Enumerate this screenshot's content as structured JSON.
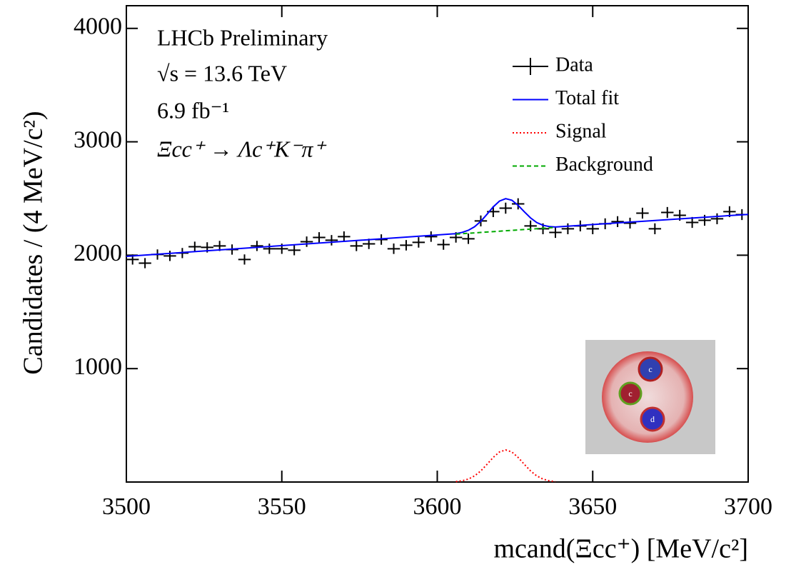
{
  "chart_data": {
    "type": "line",
    "annotations": [
      "LHCb Preliminary",
      "√s = 13.6 TeV",
      "6.9 fb⁻¹",
      "Ξcc⁺ → Λc⁺K⁻π⁺"
    ],
    "x_label": "mcand(Ξcc⁺) [MeV/c²]",
    "y_label": "Candidates / (4 MeV/c²)",
    "xlim": [
      3500,
      3700
    ],
    "xticks": [
      3500,
      3550,
      3600,
      3650,
      3700
    ],
    "ylim": [
      0,
      4200
    ],
    "yticks": [
      1000,
      2000,
      3000,
      4000
    ],
    "legend": "upper right",
    "series": [
      {
        "name": "Data",
        "color": "#000000",
        "style": "errorbar",
        "x": [
          3502,
          3506,
          3510,
          3514,
          3518,
          3522,
          3526,
          3530,
          3534,
          3538,
          3542,
          3546,
          3550,
          3554,
          3558,
          3562,
          3566,
          3570,
          3574,
          3578,
          3582,
          3586,
          3590,
          3594,
          3598,
          3602,
          3606,
          3610,
          3614,
          3618,
          3622,
          3626,
          3630,
          3634,
          3638,
          3642,
          3646,
          3650,
          3654,
          3658,
          3662,
          3666,
          3670,
          3674,
          3678,
          3682,
          3686,
          3690,
          3694,
          3698
        ],
        "values": [
          1962,
          1930,
          2006,
          1994,
          2019,
          2075,
          2069,
          2082,
          2050,
          1962,
          2082,
          2057,
          2057,
          2044,
          2119,
          2157,
          2132,
          2164,
          2082,
          2100,
          2138,
          2057,
          2088,
          2113,
          2164,
          2094,
          2157,
          2145,
          2302,
          2384,
          2415,
          2453,
          2258,
          2233,
          2201,
          2233,
          2258,
          2233,
          2277,
          2296,
          2283,
          2371,
          2233,
          2377,
          2352,
          2289,
          2308,
          2321,
          2384,
          2358
        ],
        "yerr": [
          45,
          45,
          45,
          45,
          45,
          45,
          45,
          45,
          45,
          45,
          45,
          45,
          45,
          45,
          46,
          46,
          46,
          46,
          46,
          46,
          46,
          46,
          46,
          46,
          46,
          46,
          46,
          46,
          48,
          48,
          49,
          49,
          48,
          48,
          48,
          48,
          48,
          48,
          48,
          48,
          48,
          48,
          48,
          48,
          48,
          48,
          48,
          48,
          48,
          48
        ]
      },
      {
        "name": "Total fit",
        "color": "#0000ff",
        "style": "solid",
        "x": [
          3500,
          3606,
          3608,
          3610,
          3612,
          3614,
          3616,
          3618,
          3620,
          3622,
          3624,
          3626,
          3628,
          3630,
          3632,
          3634,
          3636,
          3638,
          3700
        ],
        "values": [
          1990,
          2190,
          2201,
          2220,
          2251,
          2299,
          2361,
          2426,
          2477,
          2499,
          2485,
          2440,
          2383,
          2329,
          2288,
          2264,
          2253,
          2249,
          2360
        ]
      },
      {
        "name": "Signal",
        "color": "#ff0000",
        "style": "dotted",
        "x": [
          3606,
          3608,
          3610,
          3612,
          3614,
          3616,
          3618,
          3620,
          3622,
          3624,
          3626,
          3628,
          3630,
          3632,
          3634,
          3636,
          3638
        ],
        "values": [
          4,
          11,
          26,
          54,
          98,
          156,
          217,
          265,
          283,
          265,
          217,
          156,
          98,
          54,
          26,
          11,
          4
        ]
      },
      {
        "name": "Background",
        "color": "#00aa00",
        "style": "dashed",
        "x": [
          3606,
          3638
        ],
        "values": [
          2186,
          2245
        ]
      }
    ]
  }
}
